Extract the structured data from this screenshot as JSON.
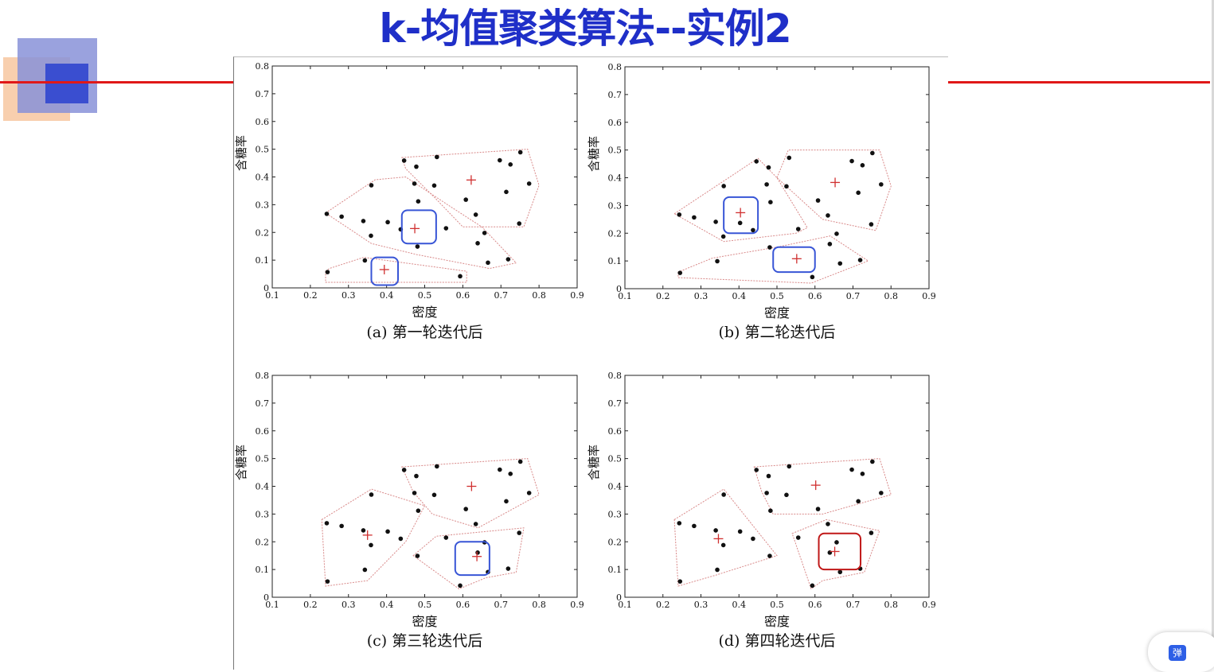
{
  "slide": {
    "title": "k-均值聚类算法--实例2"
  },
  "widget": {
    "popup_label": "弹"
  },
  "chart_data": [
    {
      "type": "scatter",
      "caption": "(a) 第一轮迭代后",
      "xlabel": "密度",
      "ylabel": "含糖率",
      "xlim": [
        0.1,
        0.9
      ],
      "ylim": [
        0,
        0.8
      ],
      "xticks": [
        "0.1",
        "0.2",
        "0.3",
        "0.4",
        "0.5",
        "0.6",
        "0.7",
        "0.8",
        "0.9"
      ],
      "yticks": [
        "0",
        "0.1",
        "0.2",
        "0.3",
        "0.4",
        "0.5",
        "0.6",
        "0.7",
        "0.8"
      ],
      "points": [
        [
          0.697,
          0.46
        ],
        [
          0.774,
          0.376
        ],
        [
          0.634,
          0.264
        ],
        [
          0.608,
          0.318
        ],
        [
          0.556,
          0.215
        ],
        [
          0.403,
          0.237
        ],
        [
          0.481,
          0.149
        ],
        [
          0.437,
          0.211
        ],
        [
          0.666,
          0.091
        ],
        [
          0.243,
          0.267
        ],
        [
          0.245,
          0.057
        ],
        [
          0.343,
          0.099
        ],
        [
          0.639,
          0.161
        ],
        [
          0.657,
          0.198
        ],
        [
          0.36,
          0.37
        ],
        [
          0.593,
          0.042
        ],
        [
          0.719,
          0.103
        ],
        [
          0.359,
          0.188
        ],
        [
          0.339,
          0.241
        ],
        [
          0.282,
          0.257
        ],
        [
          0.748,
          0.232
        ],
        [
          0.714,
          0.346
        ],
        [
          0.483,
          0.312
        ],
        [
          0.478,
          0.437
        ],
        [
          0.525,
          0.369
        ],
        [
          0.751,
          0.489
        ],
        [
          0.532,
          0.472
        ],
        [
          0.473,
          0.376
        ],
        [
          0.725,
          0.445
        ],
        [
          0.446,
          0.459
        ]
      ],
      "centroids": [
        [
          0.622,
          0.389
        ],
        [
          0.474,
          0.214
        ],
        [
          0.394,
          0.066
        ]
      ],
      "hulls": [
        [
          [
            0.44,
            0.47
          ],
          [
            0.77,
            0.5
          ],
          [
            0.8,
            0.37
          ],
          [
            0.76,
            0.22
          ],
          [
            0.6,
            0.22
          ],
          [
            0.53,
            0.32
          ],
          [
            0.45,
            0.43
          ]
        ],
        [
          [
            0.24,
            0.27
          ],
          [
            0.37,
            0.39
          ],
          [
            0.45,
            0.4
          ],
          [
            0.56,
            0.3
          ],
          [
            0.65,
            0.22
          ],
          [
            0.74,
            0.09
          ],
          [
            0.67,
            0.07
          ],
          [
            0.48,
            0.12
          ],
          [
            0.36,
            0.16
          ]
        ],
        [
          [
            0.24,
            0.06
          ],
          [
            0.25,
            0.07
          ],
          [
            0.34,
            0.11
          ],
          [
            0.61,
            0.06
          ],
          [
            0.61,
            0.02
          ],
          [
            0.24,
            0.02
          ]
        ]
      ],
      "highlights": [
        {
          "box": [
            0.44,
            0.53,
            0.16,
            0.28
          ],
          "color": "#3855d6"
        },
        {
          "box": [
            0.36,
            0.43,
            0.01,
            0.11
          ],
          "color": "#3855d6"
        }
      ]
    },
    {
      "type": "scatter",
      "caption": "(b) 第二轮迭代后",
      "xlabel": "密度",
      "ylabel": "含糖率",
      "xlim": [
        0.1,
        0.9
      ],
      "ylim": [
        0,
        0.8
      ],
      "xticks": [
        "0.1",
        "0.2",
        "0.3",
        "0.4",
        "0.5",
        "0.6",
        "0.7",
        "0.8",
        "0.9"
      ],
      "yticks": [
        "0",
        "0.1",
        "0.2",
        "0.3",
        "0.4",
        "0.5",
        "0.6",
        "0.7",
        "0.8"
      ],
      "points": [
        [
          0.697,
          0.46
        ],
        [
          0.774,
          0.376
        ],
        [
          0.634,
          0.264
        ],
        [
          0.608,
          0.318
        ],
        [
          0.556,
          0.215
        ],
        [
          0.403,
          0.237
        ],
        [
          0.481,
          0.149
        ],
        [
          0.437,
          0.211
        ],
        [
          0.666,
          0.091
        ],
        [
          0.243,
          0.267
        ],
        [
          0.245,
          0.057
        ],
        [
          0.343,
          0.099
        ],
        [
          0.639,
          0.161
        ],
        [
          0.657,
          0.198
        ],
        [
          0.36,
          0.37
        ],
        [
          0.593,
          0.042
        ],
        [
          0.719,
          0.103
        ],
        [
          0.359,
          0.188
        ],
        [
          0.339,
          0.241
        ],
        [
          0.282,
          0.257
        ],
        [
          0.748,
          0.232
        ],
        [
          0.714,
          0.346
        ],
        [
          0.483,
          0.312
        ],
        [
          0.478,
          0.437
        ],
        [
          0.525,
          0.369
        ],
        [
          0.751,
          0.489
        ],
        [
          0.532,
          0.472
        ],
        [
          0.473,
          0.376
        ],
        [
          0.725,
          0.445
        ],
        [
          0.446,
          0.459
        ]
      ],
      "centroids": [
        [
          0.653,
          0.383
        ],
        [
          0.404,
          0.274
        ],
        [
          0.552,
          0.108
        ]
      ],
      "hulls": [
        [
          [
            0.5,
            0.4
          ],
          [
            0.53,
            0.5
          ],
          [
            0.77,
            0.5
          ],
          [
            0.8,
            0.37
          ],
          [
            0.76,
            0.21
          ],
          [
            0.62,
            0.25
          ],
          [
            0.58,
            0.3
          ]
        ],
        [
          [
            0.23,
            0.27
          ],
          [
            0.45,
            0.47
          ],
          [
            0.5,
            0.4
          ],
          [
            0.58,
            0.22
          ],
          [
            0.55,
            0.2
          ],
          [
            0.36,
            0.17
          ]
        ],
        [
          [
            0.24,
            0.06
          ],
          [
            0.24,
            0.04
          ],
          [
            0.59,
            0.02
          ],
          [
            0.74,
            0.1
          ],
          [
            0.64,
            0.19
          ],
          [
            0.5,
            0.15
          ],
          [
            0.33,
            0.11
          ]
        ]
      ],
      "highlights": [
        {
          "box": [
            0.36,
            0.45,
            0.2,
            0.33
          ],
          "color": "#3855d6"
        },
        {
          "box": [
            0.49,
            0.6,
            0.06,
            0.15
          ],
          "color": "#3855d6"
        }
      ]
    },
    {
      "type": "scatter",
      "caption": "(c) 第三轮迭代后",
      "xlabel": "密度",
      "ylabel": "含糖率",
      "xlim": [
        0.1,
        0.9
      ],
      "ylim": [
        0,
        0.8
      ],
      "xticks": [
        "0.1",
        "0.2",
        "0.3",
        "0.4",
        "0.5",
        "0.6",
        "0.7",
        "0.8",
        "0.9"
      ],
      "yticks": [
        "0",
        "0.1",
        "0.2",
        "0.3",
        "0.4",
        "0.5",
        "0.6",
        "0.7",
        "0.8"
      ],
      "points": [
        [
          0.697,
          0.46
        ],
        [
          0.774,
          0.376
        ],
        [
          0.634,
          0.264
        ],
        [
          0.608,
          0.318
        ],
        [
          0.556,
          0.215
        ],
        [
          0.403,
          0.237
        ],
        [
          0.481,
          0.149
        ],
        [
          0.437,
          0.211
        ],
        [
          0.666,
          0.091
        ],
        [
          0.243,
          0.267
        ],
        [
          0.245,
          0.057
        ],
        [
          0.343,
          0.099
        ],
        [
          0.639,
          0.161
        ],
        [
          0.657,
          0.198
        ],
        [
          0.36,
          0.37
        ],
        [
          0.593,
          0.042
        ],
        [
          0.719,
          0.103
        ],
        [
          0.359,
          0.188
        ],
        [
          0.339,
          0.241
        ],
        [
          0.282,
          0.257
        ],
        [
          0.748,
          0.232
        ],
        [
          0.714,
          0.346
        ],
        [
          0.483,
          0.312
        ],
        [
          0.478,
          0.437
        ],
        [
          0.525,
          0.369
        ],
        [
          0.751,
          0.489
        ],
        [
          0.532,
          0.472
        ],
        [
          0.473,
          0.376
        ],
        [
          0.725,
          0.445
        ],
        [
          0.446,
          0.459
        ]
      ],
      "centroids": [
        [
          0.623,
          0.4
        ],
        [
          0.35,
          0.224
        ],
        [
          0.637,
          0.147
        ]
      ],
      "hulls": [
        [
          [
            0.44,
            0.47
          ],
          [
            0.77,
            0.5
          ],
          [
            0.8,
            0.37
          ],
          [
            0.64,
            0.25
          ],
          [
            0.52,
            0.3
          ],
          [
            0.47,
            0.38
          ]
        ],
        [
          [
            0.23,
            0.28
          ],
          [
            0.36,
            0.39
          ],
          [
            0.5,
            0.33
          ],
          [
            0.45,
            0.2
          ],
          [
            0.35,
            0.06
          ],
          [
            0.24,
            0.04
          ]
        ],
        [
          [
            0.47,
            0.15
          ],
          [
            0.53,
            0.22
          ],
          [
            0.76,
            0.25
          ],
          [
            0.74,
            0.09
          ],
          [
            0.66,
            0.07
          ],
          [
            0.59,
            0.03
          ]
        ]
      ],
      "highlights": [
        {
          "box": [
            0.58,
            0.67,
            0.08,
            0.2
          ],
          "color": "#3855d6"
        }
      ]
    },
    {
      "type": "scatter",
      "caption": "(d) 第四轮迭代后",
      "xlabel": "密度",
      "ylabel": "含糖率",
      "xlim": [
        0.1,
        0.9
      ],
      "ylim": [
        0,
        0.8
      ],
      "xticks": [
        "0.1",
        "0.2",
        "0.3",
        "0.4",
        "0.5",
        "0.6",
        "0.7",
        "0.8",
        "0.9"
      ],
      "yticks": [
        "0",
        "0.1",
        "0.2",
        "0.3",
        "0.4",
        "0.5",
        "0.6",
        "0.7",
        "0.8"
      ],
      "points": [
        [
          0.697,
          0.46
        ],
        [
          0.774,
          0.376
        ],
        [
          0.634,
          0.264
        ],
        [
          0.608,
          0.318
        ],
        [
          0.556,
          0.215
        ],
        [
          0.403,
          0.237
        ],
        [
          0.481,
          0.149
        ],
        [
          0.437,
          0.211
        ],
        [
          0.666,
          0.091
        ],
        [
          0.243,
          0.267
        ],
        [
          0.245,
          0.057
        ],
        [
          0.343,
          0.099
        ],
        [
          0.639,
          0.161
        ],
        [
          0.657,
          0.198
        ],
        [
          0.36,
          0.37
        ],
        [
          0.593,
          0.042
        ],
        [
          0.719,
          0.103
        ],
        [
          0.359,
          0.188
        ],
        [
          0.339,
          0.241
        ],
        [
          0.282,
          0.257
        ],
        [
          0.748,
          0.232
        ],
        [
          0.714,
          0.346
        ],
        [
          0.483,
          0.312
        ],
        [
          0.478,
          0.437
        ],
        [
          0.525,
          0.369
        ],
        [
          0.751,
          0.489
        ],
        [
          0.532,
          0.472
        ],
        [
          0.473,
          0.376
        ],
        [
          0.725,
          0.445
        ],
        [
          0.446,
          0.459
        ]
      ],
      "centroids": [
        [
          0.602,
          0.404
        ],
        [
          0.346,
          0.211
        ],
        [
          0.652,
          0.165
        ]
      ],
      "hulls": [
        [
          [
            0.44,
            0.47
          ],
          [
            0.77,
            0.5
          ],
          [
            0.8,
            0.37
          ],
          [
            0.62,
            0.3
          ],
          [
            0.49,
            0.3
          ],
          [
            0.46,
            0.38
          ]
        ],
        [
          [
            0.23,
            0.28
          ],
          [
            0.36,
            0.39
          ],
          [
            0.5,
            0.15
          ],
          [
            0.34,
            0.08
          ],
          [
            0.24,
            0.04
          ]
        ],
        [
          [
            0.54,
            0.23
          ],
          [
            0.63,
            0.28
          ],
          [
            0.77,
            0.24
          ],
          [
            0.73,
            0.09
          ],
          [
            0.62,
            0.06
          ],
          [
            0.59,
            0.03
          ]
        ]
      ],
      "highlights": [
        {
          "box": [
            0.61,
            0.72,
            0.1,
            0.23
          ],
          "color": "#c01818"
        }
      ]
    }
  ]
}
